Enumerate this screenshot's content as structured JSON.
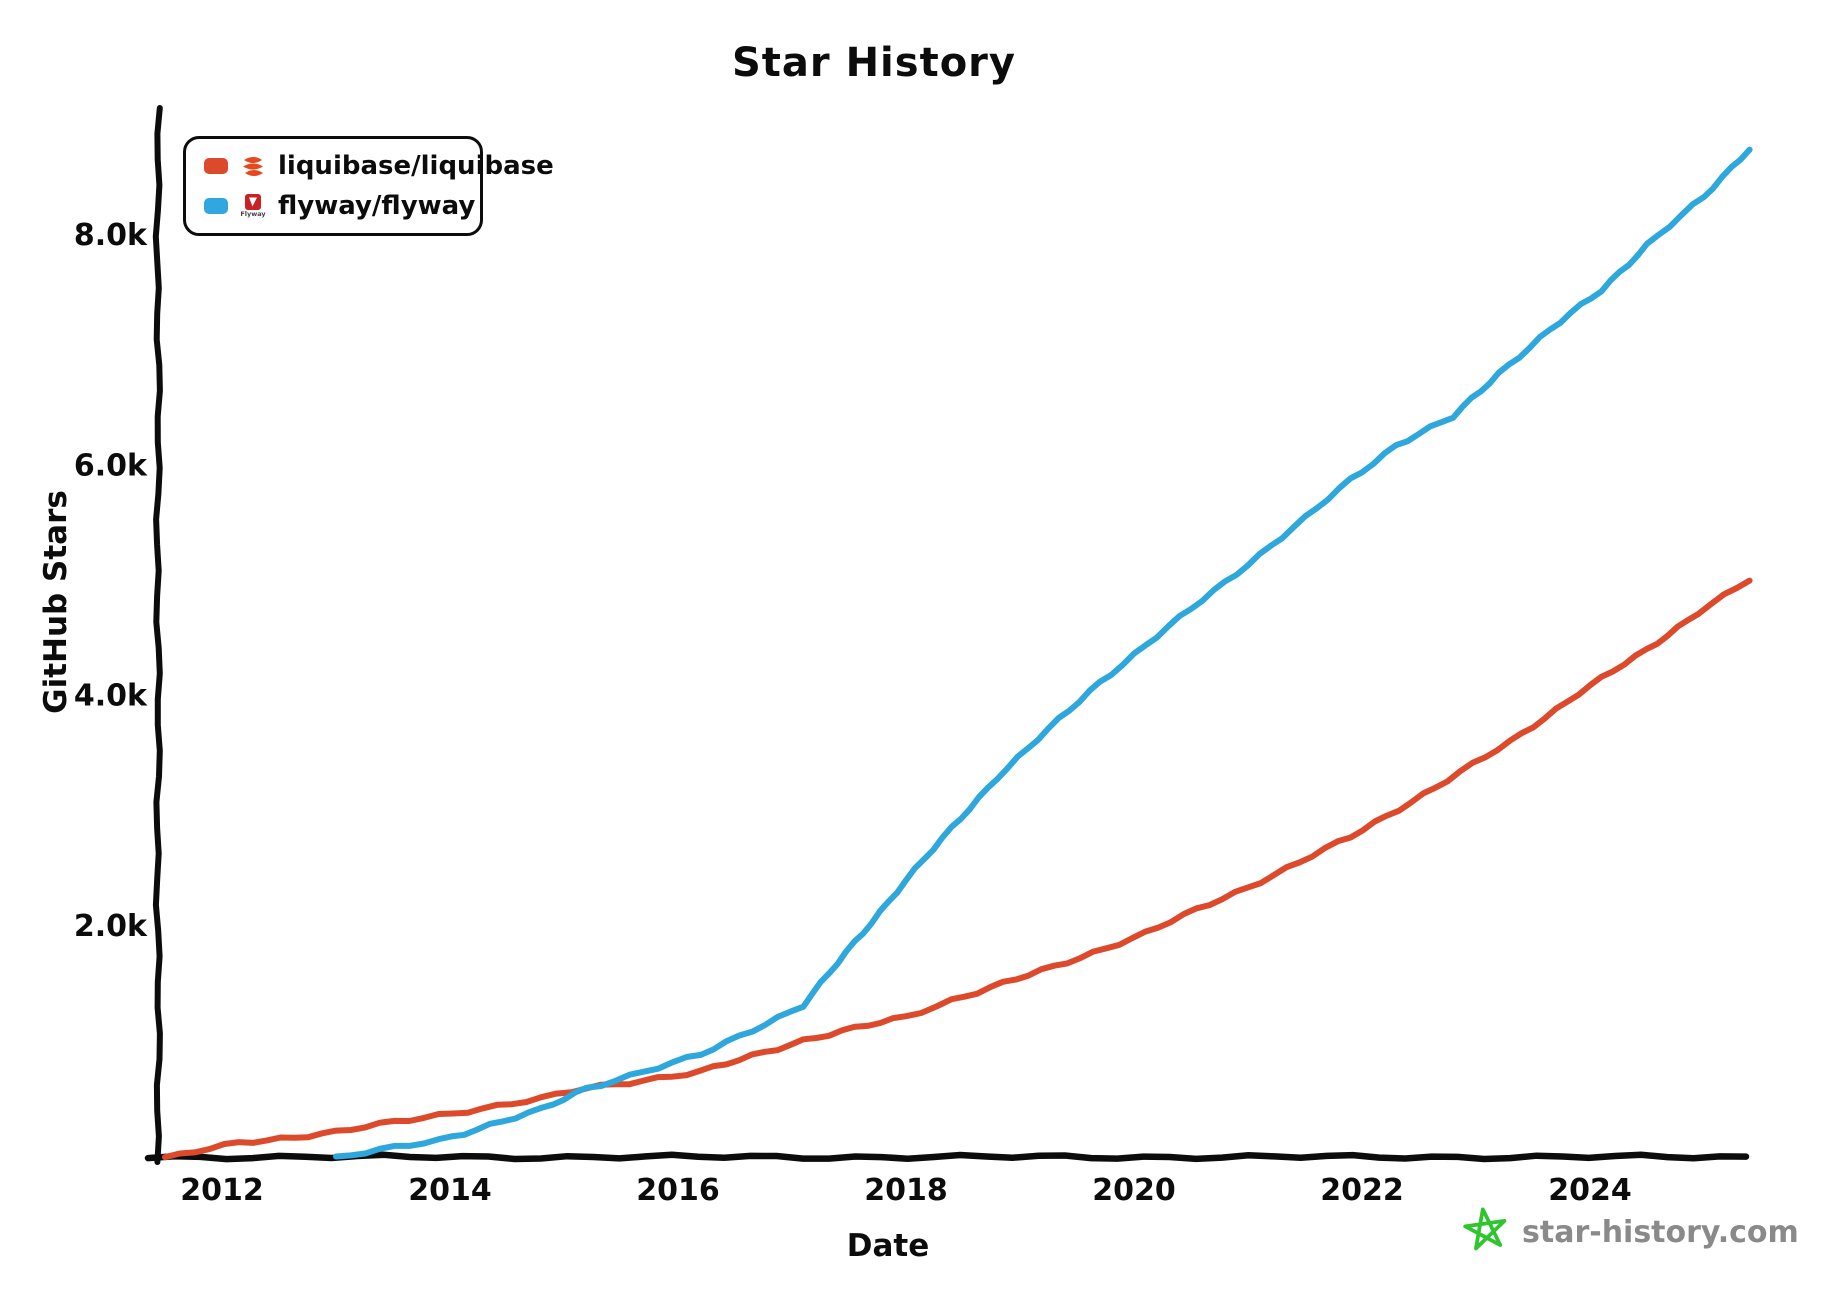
{
  "title": "Star History",
  "legend": {
    "items": [
      {
        "label": "liquibase/liquibase",
        "swatch_color": "#dd4a2b",
        "icon": "liquibase-logo-icon"
      },
      {
        "label": "flyway/flyway",
        "swatch_color": "#31a7e0",
        "icon": "flyway-logo-icon",
        "logo_text": "Flyway"
      }
    ]
  },
  "footer": {
    "text": "star-history.com",
    "icon": "star-doodle-icon",
    "text_color": "#8a8a8a",
    "star_color": "#2fc52f"
  },
  "colors": {
    "axis": "#0c0c0c",
    "background": "#ffffff",
    "liquibase_red": "#dd4a2b",
    "flyway_blue": "#2ea7dd"
  },
  "chart_data": {
    "type": "line",
    "title": "Star History",
    "xlabel": "Date",
    "ylabel": "GitHub Stars",
    "grid": false,
    "legend_position": "top-left",
    "x_range": [
      2011.42,
      2025.45
    ],
    "y_range": [
      0,
      9100
    ],
    "x_ticks": [
      {
        "value": 2012,
        "label": "2012"
      },
      {
        "value": 2014,
        "label": "2014"
      },
      {
        "value": 2016,
        "label": "2016"
      },
      {
        "value": 2018,
        "label": "2018"
      },
      {
        "value": 2020,
        "label": "2020"
      },
      {
        "value": 2022,
        "label": "2022"
      },
      {
        "value": 2024,
        "label": "2024"
      }
    ],
    "y_ticks": [
      {
        "value": 2000,
        "label": "2.0k"
      },
      {
        "value": 4000,
        "label": "4.0k"
      },
      {
        "value": 6000,
        "label": "6.0k"
      },
      {
        "value": 8000,
        "label": "8.0k"
      }
    ],
    "series": [
      {
        "name": "liquibase/liquibase",
        "color": "#dd4a2b",
        "points": [
          [
            2011.5,
            0
          ],
          [
            2012.15,
            130
          ],
          [
            2013.0,
            226
          ],
          [
            2013.9,
            373
          ],
          [
            2014.8,
            512
          ],
          [
            2015.2,
            608
          ],
          [
            2016.2,
            747
          ],
          [
            2017.1,
            1024
          ],
          [
            2018.0,
            1224
          ],
          [
            2018.4,
            1372
          ],
          [
            2019.3,
            1658
          ],
          [
            2020.1,
            1953
          ],
          [
            2021.0,
            2352
          ],
          [
            2021.9,
            2786
          ],
          [
            2022.75,
            3281
          ],
          [
            2023.3,
            3611
          ],
          [
            2023.9,
            4036
          ],
          [
            2024.5,
            4410
          ],
          [
            2024.95,
            4740
          ],
          [
            2025.4,
            5017
          ]
        ]
      },
      {
        "name": "flyway/flyway",
        "color": "#2ea7dd",
        "points": [
          [
            2013.0,
            0
          ],
          [
            2013.9,
            156
          ],
          [
            2014.8,
            417
          ],
          [
            2015.2,
            608
          ],
          [
            2016.2,
            894
          ],
          [
            2017.1,
            1328
          ],
          [
            2018.0,
            2413
          ],
          [
            2018.8,
            3307
          ],
          [
            2019.7,
            4132
          ],
          [
            2020.6,
            4844
          ],
          [
            2021.5,
            5550
          ],
          [
            2021.9,
            5890
          ],
          [
            2022.3,
            6189
          ],
          [
            2022.8,
            6432
          ],
          [
            2023.2,
            6814
          ],
          [
            2023.65,
            7187
          ],
          [
            2024.1,
            7535
          ],
          [
            2024.5,
            7925
          ],
          [
            2025.0,
            8342
          ],
          [
            2025.4,
            8767
          ]
        ]
      }
    ]
  }
}
